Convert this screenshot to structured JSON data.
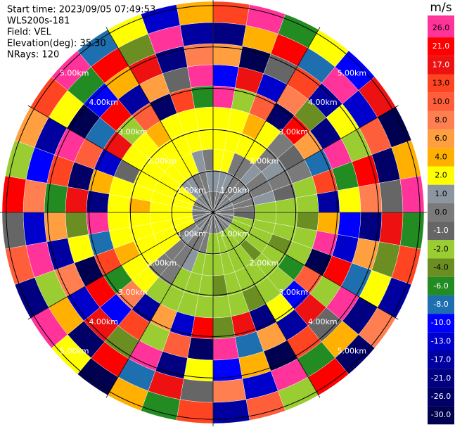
{
  "chart_data": {
    "type": "ppi",
    "header": [
      "Start time: 2023/09/05 07:49:53",
      "WLS200s-181",
      "Field: VEL",
      "Elevation(deg): 35.30",
      "NRays: 120"
    ],
    "rlim": [
      0,
      5.1
    ],
    "rings": [
      {
        "value": 1,
        "label": "1.00km"
      },
      {
        "value": 2,
        "label": "2.00km"
      },
      {
        "value": 3,
        "label": "3.00km"
      },
      {
        "value": 4,
        "label": "4.00km"
      },
      {
        "value": 5,
        "label": "5.00km"
      }
    ],
    "colorbar": {
      "unit": "m/s",
      "ticks": [
        {
          "value": 26,
          "label": "26.0"
        },
        {
          "value": 21,
          "label": "21.0"
        },
        {
          "value": 17,
          "label": "17.0"
        },
        {
          "value": 13,
          "label": "13.0"
        },
        {
          "value": 10,
          "label": "10.0"
        },
        {
          "value": 8,
          "label": "8.0"
        },
        {
          "value": 6,
          "label": "6.0"
        },
        {
          "value": 4,
          "label": "4.0"
        },
        {
          "value": 2,
          "label": "2.0"
        },
        {
          "value": 1,
          "label": "1.0"
        },
        {
          "value": 0,
          "label": "0.0"
        },
        {
          "value": -1,
          "label": "-1.0"
        },
        {
          "value": -2,
          "label": "-2.0"
        },
        {
          "value": -4,
          "label": "-4.0"
        },
        {
          "value": -6,
          "label": "-6.0"
        },
        {
          "value": -8,
          "label": "-8.0"
        },
        {
          "value": -10,
          "label": "-10.0"
        },
        {
          "value": -13,
          "label": "-13.0"
        },
        {
          "value": -17,
          "label": "-17.0"
        },
        {
          "value": -21,
          "label": "-21.0"
        },
        {
          "value": -26,
          "label": "-26.0"
        },
        {
          "value": -30,
          "label": "-30.0"
        }
      ],
      "colors": [
        "#ff3399",
        "#ff0000",
        "#ee1111",
        "#ff4422",
        "#ff5e3a",
        "#ff7f50",
        "#ff9f40",
        "#ffb000",
        "#ffff00",
        "#8c96a0",
        "#7a7a7a",
        "#666666",
        "#9acd32",
        "#6b8e23",
        "#228b22",
        "#1e6fb0",
        "#0000ff",
        "#0000cd",
        "#0000a0",
        "#000080",
        "#000066",
        "#000050"
      ]
    },
    "cells": [
      [
        0,
        1,
        2,
        2,
        2,
        26,
        -10,
        6,
        -21,
        13
      ],
      [
        0,
        1,
        2,
        2,
        2,
        -2,
        17,
        -30,
        4,
        26
      ],
      [
        0,
        1,
        0,
        2,
        4,
        10,
        -13,
        -1,
        21,
        -6
      ],
      [
        1,
        0,
        0,
        2,
        2,
        -26,
        8,
        13,
        -8,
        2
      ],
      [
        0,
        0,
        1,
        0,
        0,
        21,
        -4,
        -17,
        26,
        -10
      ],
      [
        0,
        1,
        0,
        1,
        -1,
        6,
        -21,
        2,
        -13,
        17
      ],
      [
        1,
        0,
        0,
        0,
        0,
        -8,
        26,
        -2,
        10,
        -30
      ],
      [
        0,
        0,
        1,
        -1,
        -2,
        13,
        -6,
        21,
        -26,
        4
      ],
      [
        0,
        0,
        -2,
        -2,
        -2,
        -17,
        2,
        8,
        -1,
        26
      ],
      [
        1,
        -1,
        -2,
        -2,
        -4,
        4,
        -10,
        -21,
        17,
        -6
      ],
      [
        0,
        -2,
        -2,
        -2,
        -2,
        26,
        -13,
        6,
        -4,
        13
      ],
      [
        0,
        -2,
        -2,
        -4,
        -2,
        -30,
        21,
        -8,
        2,
        -17
      ],
      [
        1,
        -2,
        -2,
        -2,
        -6,
        10,
        -2,
        26,
        -21,
        8
      ],
      [
        0,
        -2,
        -4,
        -2,
        -2,
        -10,
        17,
        -1,
        4,
        -26
      ],
      [
        0,
        -2,
        -2,
        -2,
        -2,
        2,
        -17,
        13,
        -6,
        21
      ],
      [
        1,
        -2,
        -2,
        -2,
        -4,
        -21,
        6,
        -30,
        26,
        -2
      ],
      [
        0,
        -2,
        -2,
        -2,
        -2,
        17,
        -8,
        4,
        -13,
        10
      ],
      [
        0,
        -2,
        -2,
        -4,
        -2,
        -4,
        26,
        -10,
        8,
        -17
      ],
      [
        1,
        -2,
        -2,
        -2,
        -2,
        21,
        -26,
        2,
        -1,
        13
      ],
      [
        0,
        0,
        -2,
        -2,
        -2,
        -13,
        10,
        -21,
        17,
        -6
      ],
      [
        0,
        0,
        1,
        -2,
        -2,
        6,
        -2,
        26,
        -8,
        4
      ],
      [
        1,
        0,
        0,
        0,
        -2,
        -17,
        13,
        -4,
        21,
        -30
      ],
      [
        0,
        1,
        0,
        0,
        2,
        8,
        -10,
        17,
        -26,
        2
      ],
      [
        0,
        0,
        2,
        2,
        2,
        -6,
        21,
        -13,
        4,
        26
      ],
      [
        1,
        2,
        2,
        2,
        4,
        13,
        -30,
        8,
        -2,
        -21
      ],
      [
        0,
        2,
        2,
        2,
        2,
        -8,
        2,
        -17,
        26,
        10
      ],
      [
        0,
        2,
        2,
        2,
        2,
        26,
        -4,
        6,
        -13,
        -1
      ],
      [
        1,
        2,
        2,
        4,
        2,
        -21,
        17,
        -6,
        8,
        21
      ],
      [
        0,
        2,
        2,
        2,
        2,
        4,
        -26,
        13,
        -10,
        -2
      ],
      [
        0,
        2,
        2,
        2,
        -1,
        -13,
        10,
        26,
        -17,
        6
      ],
      [
        1,
        2,
        2,
        2,
        2,
        17,
        -8,
        -30,
        2,
        13
      ],
      [
        0,
        1,
        2,
        2,
        2,
        -2,
        21,
        -10,
        -6,
        26
      ],
      [
        0,
        1,
        2,
        2,
        4,
        10,
        -17,
        4,
        21,
        -8
      ],
      [
        1,
        0,
        2,
        2,
        2,
        -26,
        6,
        17,
        -4,
        2
      ],
      [
        0,
        0,
        1,
        2,
        2,
        13,
        -1,
        -21,
        26,
        -13
      ],
      [
        0,
        1,
        0,
        2,
        2,
        -6,
        26,
        8,
        -17,
        4
      ]
    ]
  }
}
